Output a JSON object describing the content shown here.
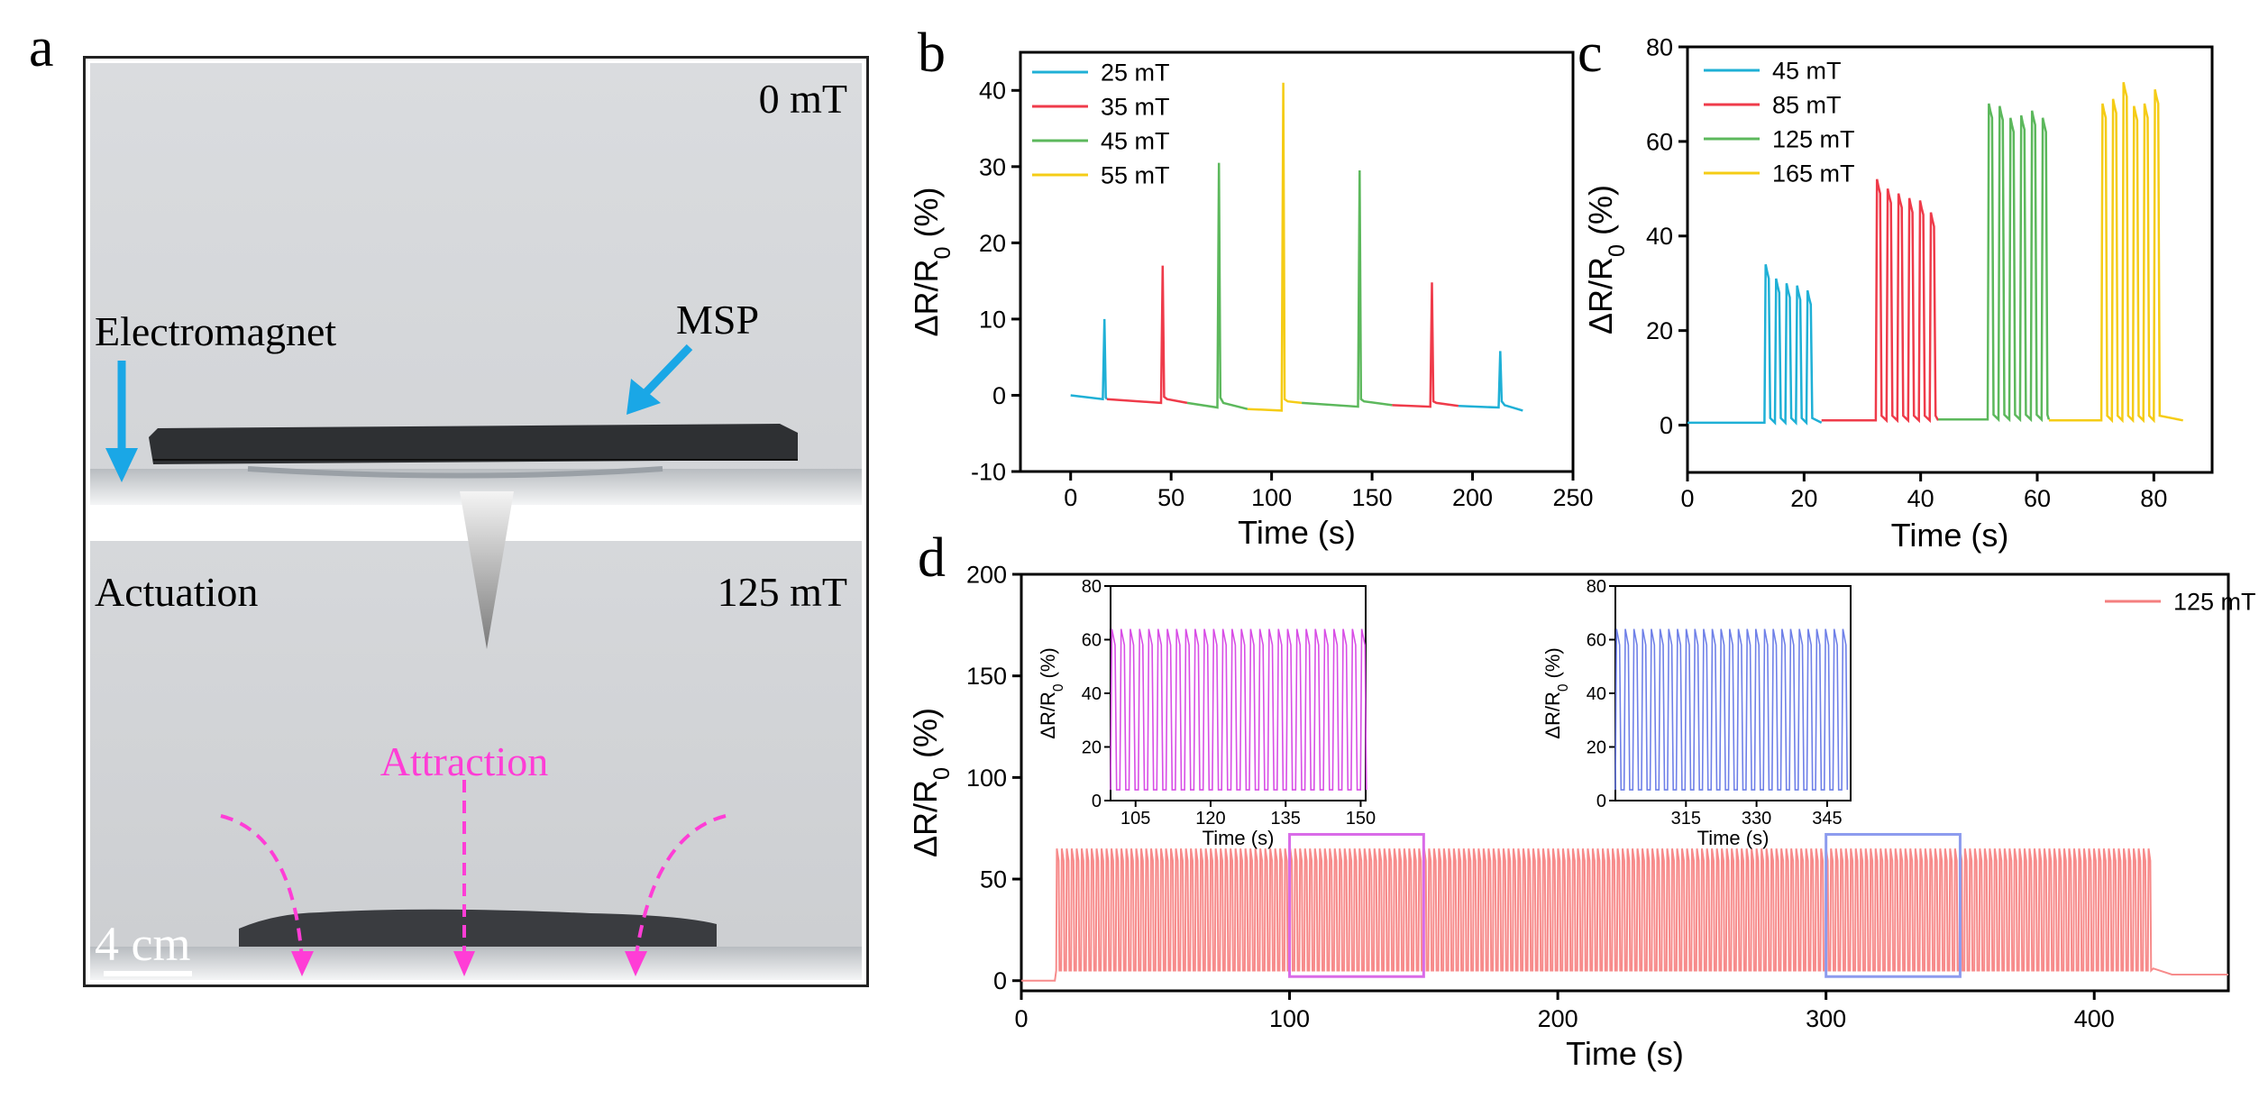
{
  "panels": {
    "a": {
      "letter": "a",
      "top_field": "0 mT",
      "electromagnet": "Electromagnet",
      "msp": "MSP",
      "actuation": "Actuation",
      "bottom_field": "125 mT",
      "attraction": "Attraction",
      "scale": "4 cm",
      "colors": {
        "arrow_blue": "#1aa7e6",
        "attraction": "#ff3dd6",
        "gray_arrow": "#8a8a8a"
      }
    },
    "b": {
      "letter": "b"
    },
    "c": {
      "letter": "c"
    },
    "d": {
      "letter": "d"
    }
  },
  "chart_data": [
    {
      "id": "b",
      "type": "line",
      "xlabel": "Time (s)",
      "ylabel": "ΔR/R0 (%)",
      "xlim": [
        -25,
        250
      ],
      "ylim": [
        -10,
        45
      ],
      "xticks": [
        0,
        50,
        100,
        150,
        200,
        250
      ],
      "yticks": [
        -10,
        0,
        10,
        20,
        30,
        40
      ],
      "legend": {
        "position": "top-left",
        "entries": [
          {
            "label": "25 mT",
            "color": "#1fb0d6"
          },
          {
            "label": "35 mT",
            "color": "#ef3b4a"
          },
          {
            "label": "45 mT",
            "color": "#5cb85c"
          },
          {
            "label": "55 mT",
            "color": "#f5cc16"
          }
        ]
      },
      "series": [
        {
          "name": "25 mT",
          "color": "#1fb0d6",
          "x": [
            0,
            16,
            16.8,
            17.5,
            18
          ],
          "y": [
            0,
            -0.5,
            10,
            -0.3,
            -0.5
          ]
        },
        {
          "name": "35 mT",
          "color": "#ef3b4a",
          "x": [
            18,
            45,
            45.8,
            46.5,
            48,
            58
          ],
          "y": [
            -0.5,
            -1.0,
            17,
            -0.2,
            -0.5,
            -1.0
          ]
        },
        {
          "name": "45 mT",
          "color": "#5cb85c",
          "x": [
            58,
            73,
            73.8,
            74.5,
            76,
            88
          ],
          "y": [
            -1.0,
            -1.6,
            30.5,
            -0.3,
            -1.0,
            -1.8
          ]
        },
        {
          "name": "55 mT",
          "color": "#f5cc16",
          "x": [
            88,
            105,
            105.8,
            106.5,
            108,
            115
          ],
          "y": [
            -1.8,
            -2.0,
            41,
            -0.5,
            -0.8,
            -1.0
          ]
        },
        {
          "name": "45 mT",
          "color": "#5cb85c",
          "x": [
            115,
            143,
            143.8,
            144.5,
            146,
            160
          ],
          "y": [
            -1.0,
            -1.5,
            29.5,
            -0.5,
            -0.8,
            -1.3
          ]
        },
        {
          "name": "35 mT",
          "color": "#ef3b4a",
          "x": [
            160,
            179,
            179.8,
            180.5,
            182,
            193
          ],
          "y": [
            -1.3,
            -1.5,
            14.8,
            -0.8,
            -1.0,
            -1.4
          ]
        },
        {
          "name": "25 mT",
          "color": "#1fb0d6",
          "x": [
            193,
            213,
            213.8,
            214.5,
            216,
            225
          ],
          "y": [
            -1.4,
            -1.6,
            5.8,
            -0.8,
            -1.3,
            -2.0
          ]
        }
      ]
    },
    {
      "id": "c",
      "type": "line",
      "xlabel": "Time (s)",
      "ylabel": "ΔR/R0 (%)",
      "xlim": [
        0,
        90
      ],
      "ylim": [
        -10,
        80
      ],
      "xticks": [
        0,
        20,
        40,
        60,
        80
      ],
      "yticks": [
        0,
        20,
        40,
        60,
        80
      ],
      "legend": {
        "position": "top-left",
        "entries": [
          {
            "label": "45 mT",
            "color": "#1fb0d6"
          },
          {
            "label": "85 mT",
            "color": "#ef3b4a"
          },
          {
            "label": "125 mT",
            "color": "#5cb85c"
          },
          {
            "label": "165 mT",
            "color": "#f5cc16"
          }
        ]
      },
      "blocks": [
        {
          "name": "45 mT",
          "color": "#1fb0d6",
          "x_start": 0,
          "x_end": 23,
          "base": 0.5,
          "pulse_start": 13.2,
          "period": 1.8,
          "count": 5,
          "peaks": [
            34,
            31,
            30,
            29.5,
            28.5
          ]
        },
        {
          "name": "85 mT",
          "color": "#ef3b4a",
          "x_start": 23,
          "x_end": 43,
          "base": 1.0,
          "pulse_start": 32.3,
          "period": 1.85,
          "count": 6,
          "peaks": [
            52,
            50,
            49,
            48,
            47.5,
            45
          ]
        },
        {
          "name": "125 mT",
          "color": "#5cb85c",
          "x_start": 43,
          "x_end": 62,
          "base": 1.2,
          "pulse_start": 51.5,
          "period": 1.85,
          "count": 6,
          "peaks": [
            68,
            67.5,
            65,
            65.5,
            66.5,
            65
          ]
        },
        {
          "name": "165 mT",
          "color": "#f5cc16",
          "x_start": 62,
          "x_end": 85,
          "base": 1.0,
          "pulse_start": 71.0,
          "period": 1.8,
          "count": 6,
          "peaks": [
            68,
            69,
            72.5,
            67.5,
            68,
            71
          ]
        }
      ]
    },
    {
      "id": "d",
      "type": "line",
      "xlabel": "Time (s)",
      "ylabel": "ΔR/R0 (%)",
      "xlim": [
        0,
        450
      ],
      "ylim": [
        -5,
        200
      ],
      "xticks": [
        0,
        100,
        200,
        300,
        400
      ],
      "yticks": [
        0,
        50,
        100,
        150,
        200
      ],
      "legend": {
        "position": "top-right",
        "entries": [
          {
            "label": "125 mT",
            "color": "#f47f7f"
          }
        ]
      },
      "series_color": "#f78b8b",
      "cycle_start": 13,
      "cycle_end": 421,
      "period": 1.85,
      "peak": 65,
      "trough": 5,
      "end_value": 3,
      "highlight_boxes": [
        {
          "x": [
            100,
            150
          ],
          "y": [
            2,
            72
          ],
          "color": "#d96ae8"
        },
        {
          "x": [
            300,
            350
          ],
          "y": [
            2,
            72
          ],
          "color": "#8c9bee"
        }
      ],
      "insets": [
        {
          "xlabel": "Time (s)",
          "ylabel": "ΔR/R0 (%)",
          "xlim": [
            100,
            151
          ],
          "ylim": [
            0,
            80
          ],
          "xticks": [
            105,
            120,
            135,
            150
          ],
          "yticks": [
            0,
            20,
            40,
            60,
            80
          ],
          "color": "#d84ee6",
          "peak": 64,
          "trough": 4
        },
        {
          "xlabel": "Time (s)",
          "ylabel": "ΔR/R0 (%)",
          "xlim": [
            300,
            350
          ],
          "ylim": [
            0,
            80
          ],
          "xticks": [
            315,
            330,
            345
          ],
          "yticks": [
            0,
            20,
            40,
            60,
            80
          ],
          "color": "#6f80e8",
          "peak": 64,
          "trough": 4
        }
      ]
    }
  ]
}
